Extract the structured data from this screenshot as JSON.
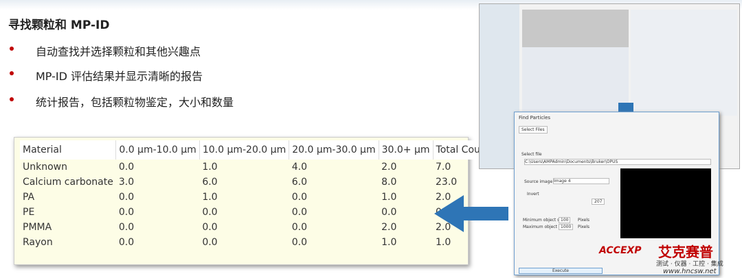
{
  "header": {
    "title": "寻找颗粒和 MP-ID"
  },
  "bullets": [
    "自动查找并选择颗粒和其他兴趣点",
    "MP-ID 评估结果并显示清晰的报告",
    "统计报告，包括颗粒物鉴定，大小和数量"
  ],
  "table": {
    "columns": [
      "Material",
      "0.0 µm-10.0 µm",
      "10.0 µm-20.0 µm",
      "20.0 µm-30.0 µm",
      "30.0+ µm",
      "Total Count"
    ],
    "rows": [
      [
        "Unknown",
        "0.0",
        "1.0",
        "4.0",
        "2.0",
        "7.0"
      ],
      [
        "Calcium carbonate",
        "3.0",
        "6.0",
        "6.0",
        "8.0",
        "23.0"
      ],
      [
        "PA",
        "0.0",
        "1.0",
        "0.0",
        "1.0",
        "2.0"
      ],
      [
        "PE",
        "0.0",
        "0.0",
        "0.0",
        "0.0",
        "0.0"
      ],
      [
        "PMMA",
        "0.0",
        "0.0",
        "0.0",
        "2.0",
        "2.0"
      ],
      [
        "Rayon",
        "0.0",
        "0.0",
        "0.0",
        "1.0",
        "1.0"
      ]
    ]
  },
  "dialog": {
    "title": "Find Particles",
    "tab": "Select Files",
    "select_file_label": "Select file",
    "path": "C:\\Users\\AMPAdmin\\Documents\\Bruker\\OPUS",
    "source_image_label": "Source image",
    "source_image": "Image 4",
    "invert": "Invert",
    "threshold": "207",
    "min_label": "Minimum object size",
    "min_value": "100",
    "max_label": "Maximum object size",
    "max_value": "1000",
    "unit": "Pixels",
    "execute": "Execute"
  },
  "logo": {
    "name": "艾克赛普",
    "tagline": "测试 · 仪器 · 工控 · 集成",
    "mark": "ACCEXP",
    "url": "www.hncsw.net"
  }
}
